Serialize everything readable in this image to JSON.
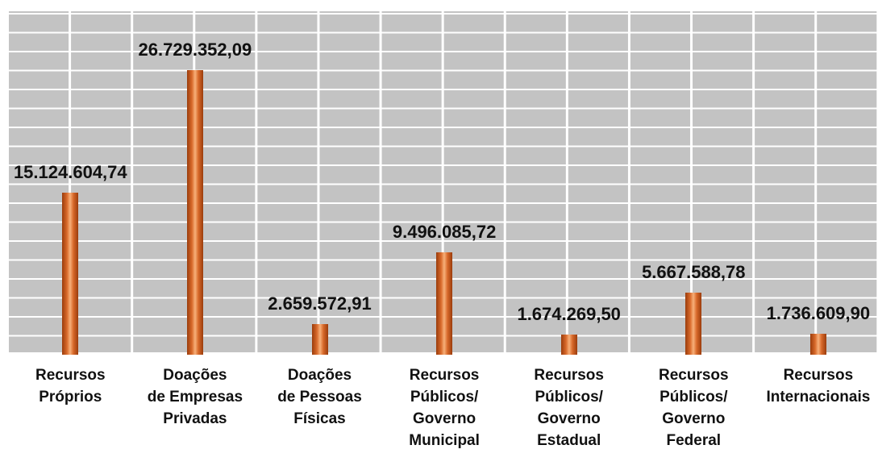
{
  "chart_data": {
    "type": "bar",
    "categories": [
      "Recursos\nPróprios",
      "Doações\nde Empresas\nPrivadas",
      "Doações\nde Pessoas\nFísicas",
      "Recursos\nPúblicos/\nGoverno\nMunicipal",
      "Recursos\nPúblicos/\nGoverno\nEstadual",
      "Recursos\nPúblicos/\nGoverno\nFederal",
      "Recursos\nInternacionais"
    ],
    "values": [
      15124604.74,
      26729352.09,
      2659572.91,
      9496085.72,
      1674269.5,
      5667588.78,
      1736609.9
    ],
    "value_labels": [
      "15.124.604,74",
      "26.729.352,09",
      "2.659.572,91",
      "9.496.085,72",
      "1.674.269,50",
      "5.667.588,78",
      "1.736.609,90"
    ],
    "color": "#d8692a",
    "ylim": [
      0,
      32000000
    ],
    "grid": true
  }
}
